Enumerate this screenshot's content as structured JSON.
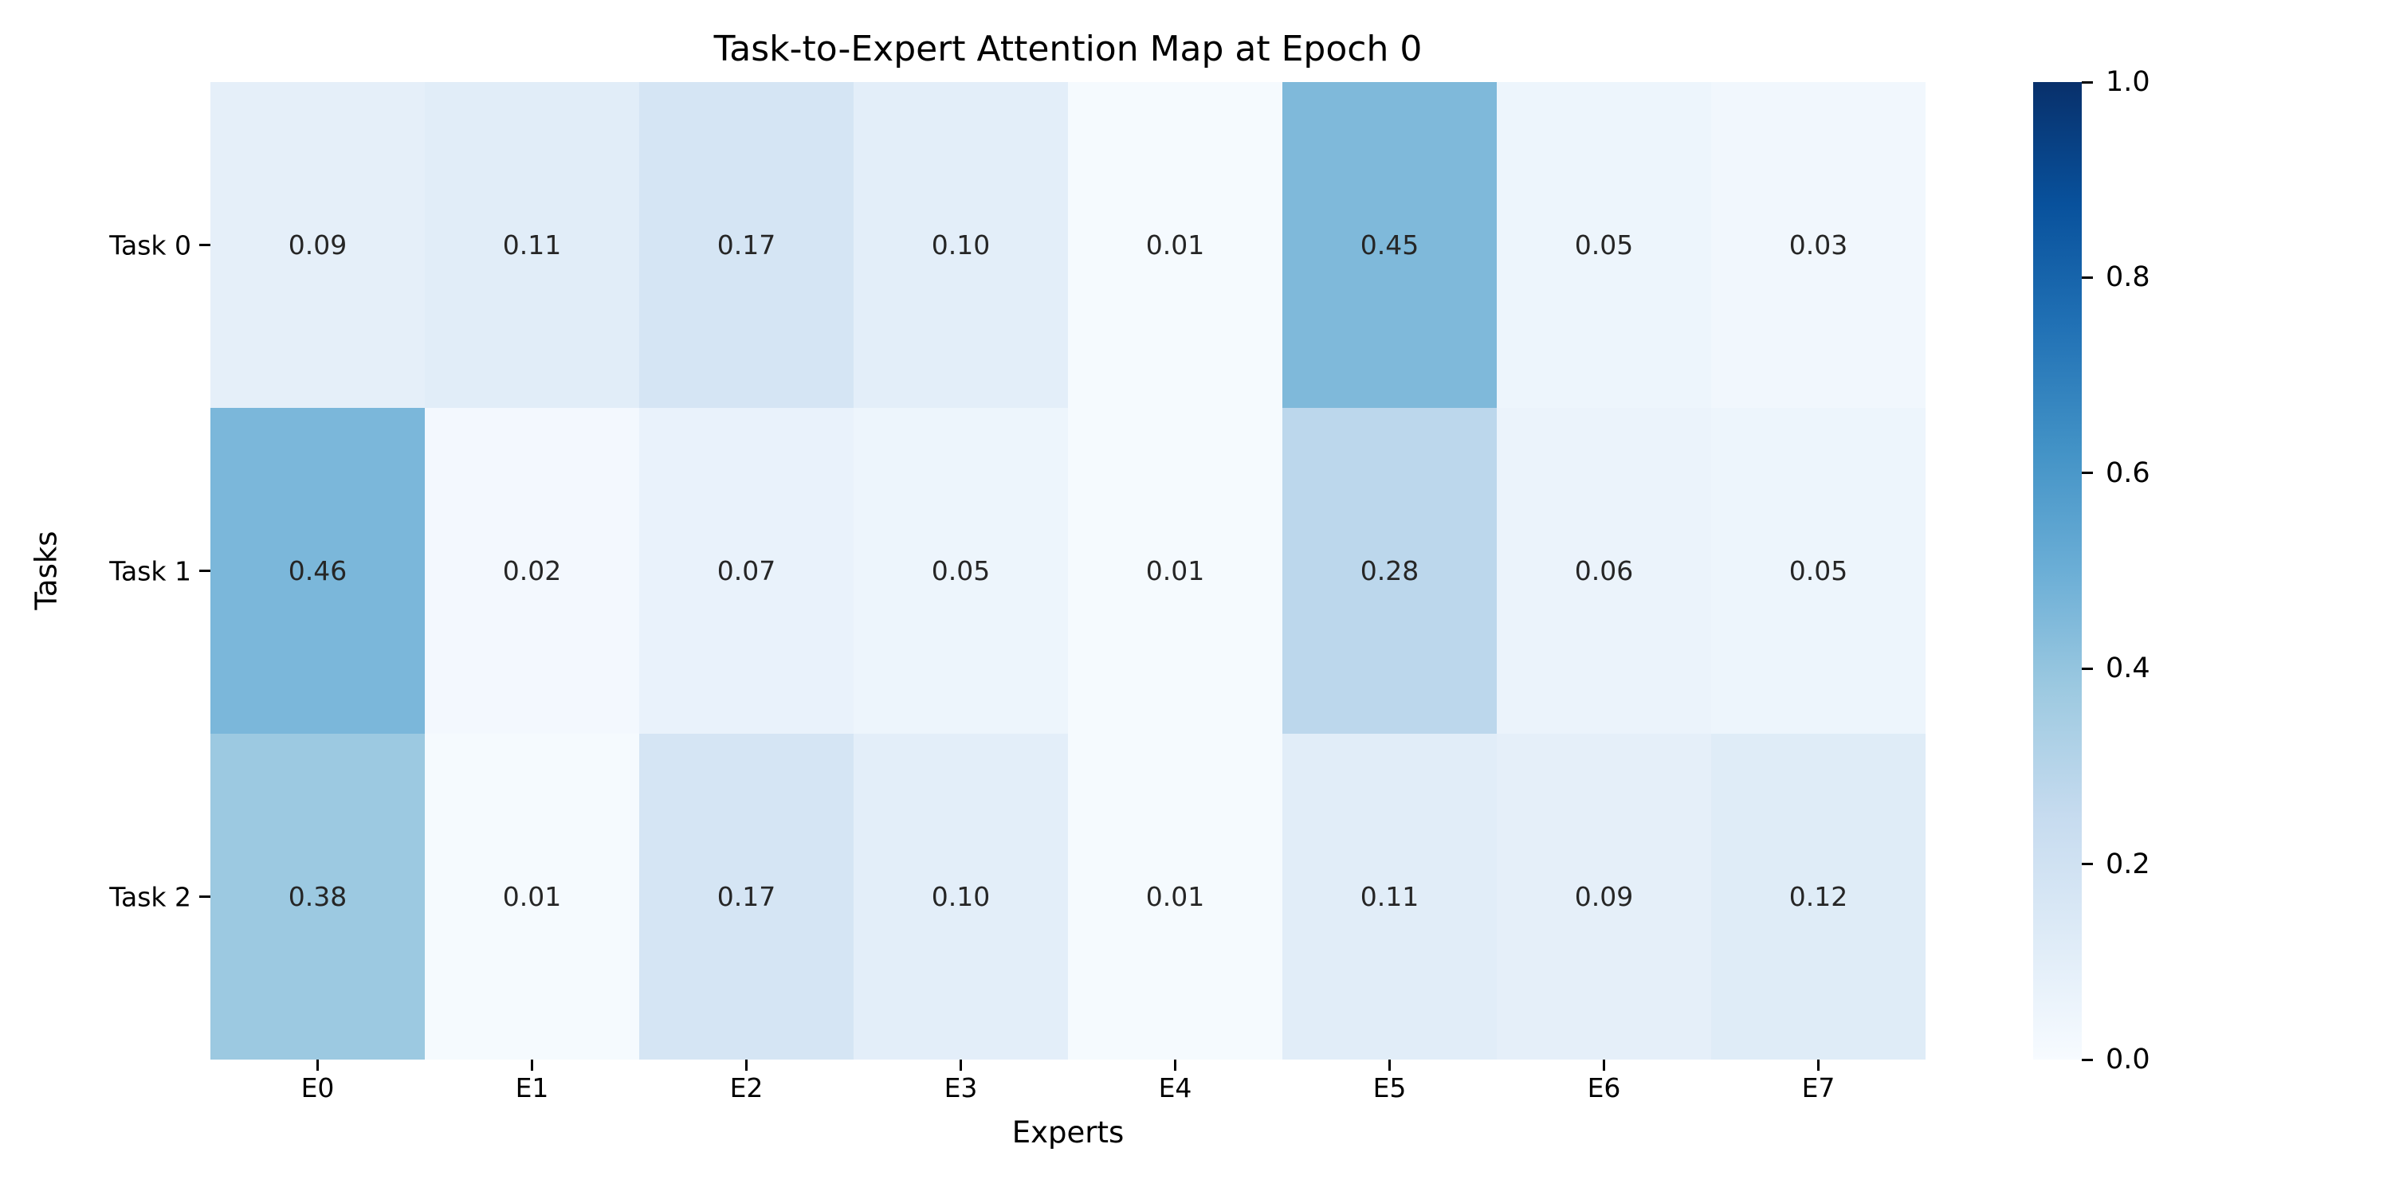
{
  "chart_data": {
    "type": "heatmap",
    "title": "Task-to-Expert Attention Map at Epoch 0",
    "xlabel": "Experts",
    "ylabel": "Tasks",
    "x_categories": [
      "E0",
      "E1",
      "E2",
      "E3",
      "E4",
      "E5",
      "E6",
      "E7"
    ],
    "y_categories": [
      "Task 0",
      "Task 1",
      "Task 2"
    ],
    "values": [
      [
        0.09,
        0.11,
        0.17,
        0.1,
        0.01,
        0.45,
        0.05,
        0.03
      ],
      [
        0.46,
        0.02,
        0.07,
        0.05,
        0.01,
        0.28,
        0.06,
        0.05
      ],
      [
        0.38,
        0.01,
        0.17,
        0.1,
        0.01,
        0.11,
        0.09,
        0.12
      ]
    ],
    "annotation_decimals": 2,
    "annotation_color": "#262626",
    "background_color": "#ffffff",
    "colormap": "Blues",
    "colormap_anchors": [
      {
        "pos": 0.0,
        "hex": "#f7fbff"
      },
      {
        "pos": 0.125,
        "hex": "#deebf7"
      },
      {
        "pos": 0.25,
        "hex": "#c6dbef"
      },
      {
        "pos": 0.375,
        "hex": "#9ecae1"
      },
      {
        "pos": 0.5,
        "hex": "#6baed6"
      },
      {
        "pos": 0.625,
        "hex": "#4292c6"
      },
      {
        "pos": 0.75,
        "hex": "#2171b5"
      },
      {
        "pos": 0.875,
        "hex": "#08519c"
      },
      {
        "pos": 1.0,
        "hex": "#08306b"
      }
    ],
    "colorbar": {
      "min": 0.0,
      "max": 1.0,
      "tick_labels": [
        "1.0",
        "0.8",
        "0.6",
        "0.4",
        "0.2",
        "0.0"
      ],
      "position": "right"
    },
    "grid": "off",
    "legend": "none"
  }
}
